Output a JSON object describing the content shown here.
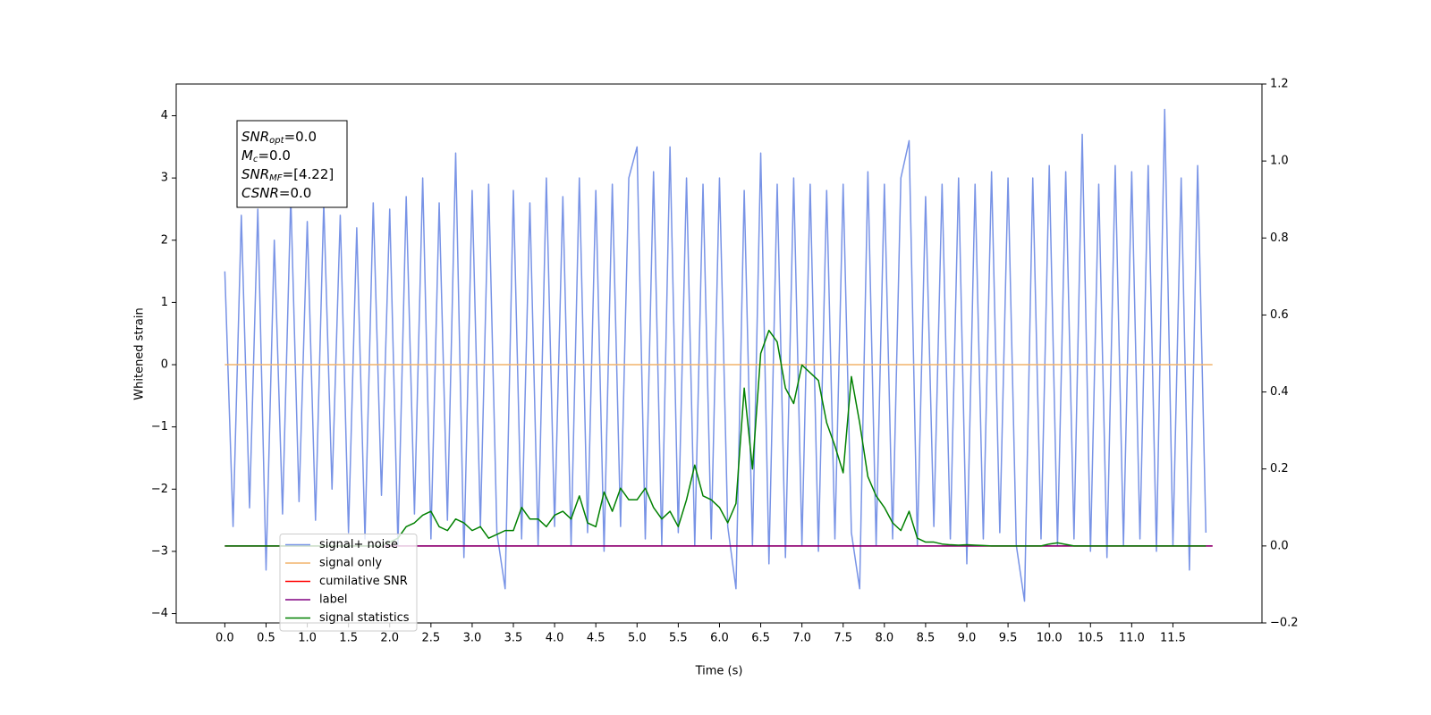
{
  "chart_data": {
    "type": "line",
    "xlabel": "Time (s)",
    "ylabel": "Whitened strain",
    "annotation": [
      [
        "SNR",
        "opt",
        "=0.0"
      ],
      [
        "M",
        "c",
        "=0.0"
      ],
      [
        "SNR",
        "MF",
        "=[4.22]"
      ],
      [
        "CSNR",
        null,
        "=0.0"
      ]
    ],
    "x": [
      0,
      0.1,
      0.2,
      0.3,
      0.4,
      0.5,
      0.6,
      0.7,
      0.8,
      0.9,
      1,
      1.1,
      1.2,
      1.3,
      1.4,
      1.5,
      1.6,
      1.7,
      1.8,
      1.9,
      2,
      2.1,
      2.2,
      2.3,
      2.4,
      2.5,
      2.6,
      2.7,
      2.8,
      2.9,
      3,
      3.1,
      3.2,
      3.3,
      3.4,
      3.5,
      3.6,
      3.7,
      3.8,
      3.9,
      4,
      4.1,
      4.2,
      4.3,
      4.4,
      4.5,
      4.6,
      4.7,
      4.8,
      4.9,
      5,
      5.1,
      5.2,
      5.3,
      5.4,
      5.5,
      5.6,
      5.7,
      5.8,
      5.9,
      6,
      6.1,
      6.2,
      6.3,
      6.4,
      6.5,
      6.6,
      6.7,
      6.8,
      6.9,
      7,
      7.1,
      7.2,
      7.3,
      7.4,
      7.5,
      7.6,
      7.7,
      7.8,
      7.9,
      8,
      8.1,
      8.2,
      8.3,
      8.4,
      8.5,
      8.6,
      8.7,
      8.8,
      8.9,
      9,
      9.1,
      9.2,
      9.3,
      9.4,
      9.5,
      9.6,
      9.7,
      9.8,
      9.9,
      10,
      10.1,
      10.2,
      10.3,
      10.4,
      10.5,
      10.6,
      10.7,
      10.8,
      10.9,
      11,
      11.1,
      11.2,
      11.3,
      11.4,
      11.5,
      11.6,
      11.7,
      11.8,
      11.9
    ],
    "series": [
      {
        "name": "signal+ noise",
        "color": "#7893e6",
        "values": [
          1.5,
          -2.6,
          2.4,
          -2.3,
          2.5,
          -3.3,
          2.0,
          -2.4,
          2.7,
          -2.2,
          2.3,
          -2.5,
          2.6,
          -2.0,
          2.4,
          -2.7,
          2.2,
          -2.8,
          2.6,
          -2.1,
          2.5,
          -2.9,
          2.7,
          -2.4,
          3.0,
          -2.8,
          2.6,
          -2.5,
          3.4,
          -3.1,
          2.8,
          -2.6,
          2.9,
          -2.7,
          -3.6,
          2.8,
          -2.8,
          2.6,
          -2.9,
          3.0,
          -2.6,
          2.7,
          -2.9,
          3.0,
          -2.7,
          2.8,
          -3.0,
          2.9,
          -2.6,
          3.0,
          3.5,
          -2.8,
          3.1,
          -2.9,
          3.5,
          -2.7,
          3.0,
          -2.9,
          2.9,
          -2.8,
          3.0,
          -2.6,
          -3.6,
          2.8,
          -2.9,
          3.4,
          -3.2,
          2.9,
          -3.1,
          3.0,
          -2.9,
          2.9,
          -3.0,
          2.8,
          -2.8,
          2.9,
          -2.7,
          -3.6,
          3.1,
          -2.9,
          2.9,
          -2.8,
          3.0,
          3.6,
          -2.9,
          2.7,
          -2.6,
          2.9,
          -2.8,
          3.0,
          -3.2,
          2.9,
          -2.8,
          3.1,
          -2.7,
          3.0,
          -2.9,
          -3.8,
          3.0,
          -2.8,
          3.2,
          -2.9,
          3.1,
          -2.8,
          3.7,
          -3.0,
          2.9,
          -3.1,
          3.2,
          -2.9,
          3.1,
          -2.8,
          3.2,
          -3.0,
          4.1,
          -2.9,
          3.0,
          -3.3,
          3.2,
          -2.7
        ]
      },
      {
        "name": "signal only",
        "color": "#f2b46c",
        "x": [
          0,
          11.98
        ],
        "values": [
          0,
          0
        ]
      },
      {
        "name": "cumilative SNR",
        "color": "#ff0000",
        "axis": "y2",
        "x": [
          0,
          11.98
        ],
        "values": [
          0,
          0
        ]
      },
      {
        "name": "label",
        "color": "#800080",
        "axis": "y2",
        "x": [
          0,
          11.98
        ],
        "values": [
          0,
          0
        ]
      },
      {
        "name": "signal statistics",
        "color": "#008000",
        "axis": "y2",
        "values": [
          0,
          0,
          0,
          0,
          0,
          0,
          0,
          0,
          0,
          0,
          0,
          0,
          0,
          0,
          0,
          0,
          0,
          0,
          0,
          0,
          0.01,
          0.02,
          0.05,
          0.06,
          0.08,
          0.09,
          0.05,
          0.04,
          0.07,
          0.06,
          0.04,
          0.05,
          0.02,
          0.03,
          0.04,
          0.04,
          0.1,
          0.07,
          0.07,
          0.05,
          0.08,
          0.09,
          0.07,
          0.13,
          0.06,
          0.05,
          0.14,
          0.09,
          0.15,
          0.12,
          0.12,
          0.15,
          0.1,
          0.07,
          0.09,
          0.05,
          0.12,
          0.21,
          0.13,
          0.12,
          0.1,
          0.06,
          0.11,
          0.41,
          0.2,
          0.5,
          0.56,
          0.53,
          0.41,
          0.37,
          0.47,
          0.45,
          0.43,
          0.32,
          0.26,
          0.19,
          0.44,
          0.32,
          0.18,
          0.13,
          0.1,
          0.06,
          0.04,
          0.09,
          0.02,
          0.01,
          0.01,
          0.005,
          0.003,
          0.002,
          0.003,
          0.002,
          0.001,
          0,
          0,
          0,
          0,
          0,
          0,
          0,
          0.005,
          0.008,
          0.004,
          0,
          0,
          0,
          0,
          0,
          0,
          0,
          0,
          0,
          0,
          0,
          0,
          0,
          0,
          0,
          0,
          0
        ]
      }
    ],
    "xlim": [
      -0.59,
      12.58
    ],
    "ylim": [
      -4.15,
      4.51
    ],
    "y2lim": [
      -0.2,
      1.2
    ],
    "xticks": [
      {
        "value": 0,
        "label": "0.0"
      },
      0.5,
      {
        "value": 1,
        "label": "1.0"
      },
      1.5,
      {
        "value": 2,
        "label": "2.0"
      },
      2.5,
      {
        "value": 3,
        "label": "3.0"
      },
      3.5,
      {
        "value": 4,
        "label": "4.0"
      },
      4.5,
      {
        "value": 5,
        "label": "5.0"
      },
      5.5,
      {
        "value": 6,
        "label": "6.0"
      },
      6.5,
      {
        "value": 7,
        "label": "7.0"
      },
      7.5,
      {
        "value": 8,
        "label": "8.0"
      },
      8.5,
      {
        "value": 9,
        "label": "9.0"
      },
      9.5,
      {
        "value": 10,
        "label": "10.0"
      },
      10.5,
      {
        "value": 11,
        "label": "11.0"
      },
      11.5
    ],
    "yticks": [
      {
        "value": -4,
        "label": "−4"
      },
      {
        "value": -3,
        "label": "−3"
      },
      {
        "value": -2,
        "label": "−2"
      },
      {
        "value": -1,
        "label": "−1"
      },
      0,
      1,
      2,
      3,
      4
    ],
    "y2ticks": [
      {
        "value": -0.2,
        "label": "−0.2"
      },
      {
        "value": 0,
        "label": "0.0"
      },
      0.2,
      0.4,
      0.6,
      0.8,
      {
        "value": 1,
        "label": "1.0"
      },
      1.2
    ],
    "legend": "lower left"
  }
}
